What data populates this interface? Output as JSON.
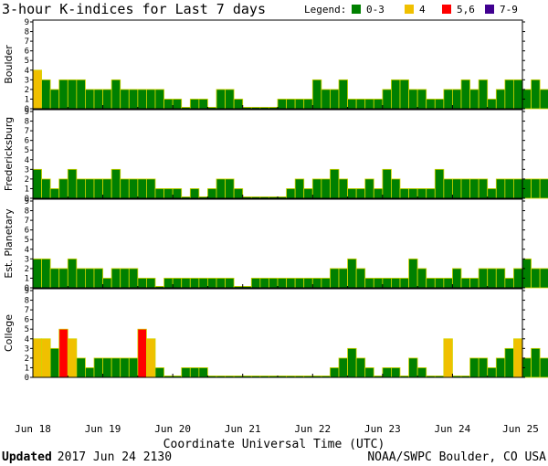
{
  "chart_data": {
    "type": "bar",
    "title": "3-hour K-indices for Last 7 days",
    "xlabel": "Coordinate Universal Time (UTC)",
    "ylim": [
      0,
      9
    ],
    "yticks": [
      0,
      1,
      2,
      3,
      4,
      5,
      6,
      7,
      8,
      9
    ],
    "x_tick_labels": [
      "Jun 18",
      "Jun 19",
      "Jun 20",
      "Jun 21",
      "Jun 22",
      "Jun 23",
      "Jun 24",
      "Jun 25"
    ],
    "legend": {
      "title": "Legend:",
      "placement": "top-right",
      "items": [
        {
          "label": "0-3",
          "color": "#008000"
        },
        {
          "label": "4",
          "color": "#f0c000"
        },
        {
          "label": "5,6",
          "color": "#ff0000"
        },
        {
          "label": "7-9",
          "color": "#400090"
        }
      ]
    },
    "bar_edge_color": "#d4d400",
    "series": [
      {
        "name": "Boulder",
        "values": [
          4,
          3,
          2,
          3,
          3,
          3,
          2,
          2,
          2,
          3,
          2,
          2,
          2,
          2,
          2,
          1,
          1,
          0,
          1,
          1,
          0,
          2,
          2,
          1,
          0,
          0,
          0,
          0,
          1,
          1,
          1,
          1,
          3,
          2,
          2,
          3,
          1,
          1,
          1,
          1,
          2,
          3,
          3,
          2,
          2,
          1,
          1,
          2,
          2,
          3,
          2,
          3,
          1,
          2,
          3,
          3,
          2,
          3,
          2,
          1,
          0
        ]
      },
      {
        "name": "Fredericksburg",
        "values": [
          3,
          2,
          1,
          2,
          3,
          2,
          2,
          2,
          2,
          3,
          2,
          2,
          2,
          2,
          1,
          1,
          1,
          0,
          1,
          0,
          1,
          2,
          2,
          1,
          0,
          0,
          0,
          0,
          0,
          1,
          2,
          1,
          2,
          2,
          3,
          2,
          1,
          1,
          2,
          1,
          3,
          2,
          1,
          1,
          1,
          1,
          3,
          2,
          2,
          2,
          2,
          2,
          1,
          2,
          2,
          2,
          2,
          2,
          2,
          2,
          0
        ]
      },
      {
        "name": "Est. Planetary",
        "values": [
          3,
          3,
          2,
          2,
          3,
          2,
          2,
          2,
          1,
          2,
          2,
          2,
          1,
          1,
          0,
          1,
          1,
          1,
          1,
          1,
          1,
          1,
          1,
          0,
          0,
          1,
          1,
          1,
          1,
          1,
          1,
          1,
          1,
          1,
          2,
          2,
          3,
          2,
          1,
          1,
          1,
          1,
          1,
          3,
          2,
          1,
          1,
          1,
          2,
          1,
          1,
          2,
          2,
          2,
          1,
          2,
          3,
          2,
          2,
          3,
          0
        ]
      },
      {
        "name": "College",
        "values": [
          4,
          4,
          3,
          5,
          4,
          2,
          1,
          2,
          2,
          2,
          2,
          2,
          5,
          4,
          1,
          0,
          0,
          1,
          1,
          1,
          0,
          0,
          0,
          0,
          0,
          0,
          0,
          0,
          0,
          0,
          0,
          0,
          0,
          0,
          1,
          2,
          3,
          2,
          1,
          0,
          1,
          1,
          0,
          2,
          1,
          0,
          0,
          4,
          0,
          0,
          2,
          2,
          1,
          2,
          3,
          4,
          2,
          3,
          2,
          1,
          0
        ]
      }
    ]
  },
  "footer": {
    "updated_label": "Updated",
    "updated_value": "2017 Jun 24 2130",
    "source": "NOAA/SWPC Boulder, CO USA"
  }
}
